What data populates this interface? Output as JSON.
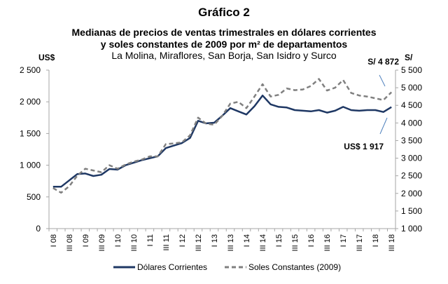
{
  "chart_data": {
    "type": "line",
    "title": "Gráfico 2",
    "subtitle_lines": [
      "Medianas de precios de ventas trimestrales en dólares corrientes",
      "y soles constantes de 2009 por m² de departamentos",
      "La Molina, Miraflores, San Borja, San Isidro y Surco"
    ],
    "ylabel_left": "US$",
    "ylabel_right": "S/",
    "ylim_left": [
      0,
      2500
    ],
    "ylim_right": [
      1000,
      5500
    ],
    "yticks_left": [
      "0",
      "500",
      "1 000",
      "1 500",
      "2 000",
      "2 500"
    ],
    "yticks_right": [
      "1 000",
      "1 500",
      "2 000",
      "2 500",
      "3 000",
      "3 500",
      "4 000",
      "4 500",
      "5 000",
      "5 500"
    ],
    "x_tick_labels": [
      "I 08",
      "III 08",
      "I 09",
      "III 09",
      "I 10",
      "III 10",
      "I 11",
      "III 11",
      "I 12",
      "III 12",
      "I 13",
      "III 13",
      "I 14",
      "III 14",
      "I 15",
      "III 15",
      "I 16",
      "III 16",
      "I 17",
      "III 17",
      "I 18",
      "III 18"
    ],
    "grid": false,
    "legend_position": "bottom",
    "series": [
      {
        "name": "Dólares Corrientes",
        "axis": "left",
        "color": "#1f3864",
        "style": "solid",
        "values": [
          660,
          660,
          760,
          860,
          870,
          830,
          850,
          940,
          930,
          1000,
          1040,
          1080,
          1110,
          1140,
          1270,
          1310,
          1350,
          1430,
          1700,
          1660,
          1670,
          1780,
          1900,
          1850,
          1800,
          1930,
          2100,
          1960,
          1920,
          1910,
          1870,
          1860,
          1850,
          1870,
          1830,
          1860,
          1920,
          1870,
          1860,
          1870,
          1870,
          1840,
          1917
        ]
      },
      {
        "name": "Soles Constantes (2009)",
        "axis": "right",
        "color": "#808080",
        "style": "dashed",
        "values": [
          2150,
          2020,
          2200,
          2500,
          2700,
          2650,
          2600,
          2800,
          2700,
          2820,
          2900,
          2960,
          3050,
          3050,
          3400,
          3420,
          3450,
          3650,
          4150,
          3980,
          3950,
          4200,
          4550,
          4600,
          4420,
          4750,
          5100,
          4750,
          4800,
          4980,
          4930,
          4950,
          5050,
          5250,
          4920,
          5000,
          5220,
          4850,
          4780,
          4750,
          4700,
          4650,
          4872
        ]
      }
    ],
    "annotations": [
      "S/ 4 872",
      "US$ 1 917"
    ]
  }
}
